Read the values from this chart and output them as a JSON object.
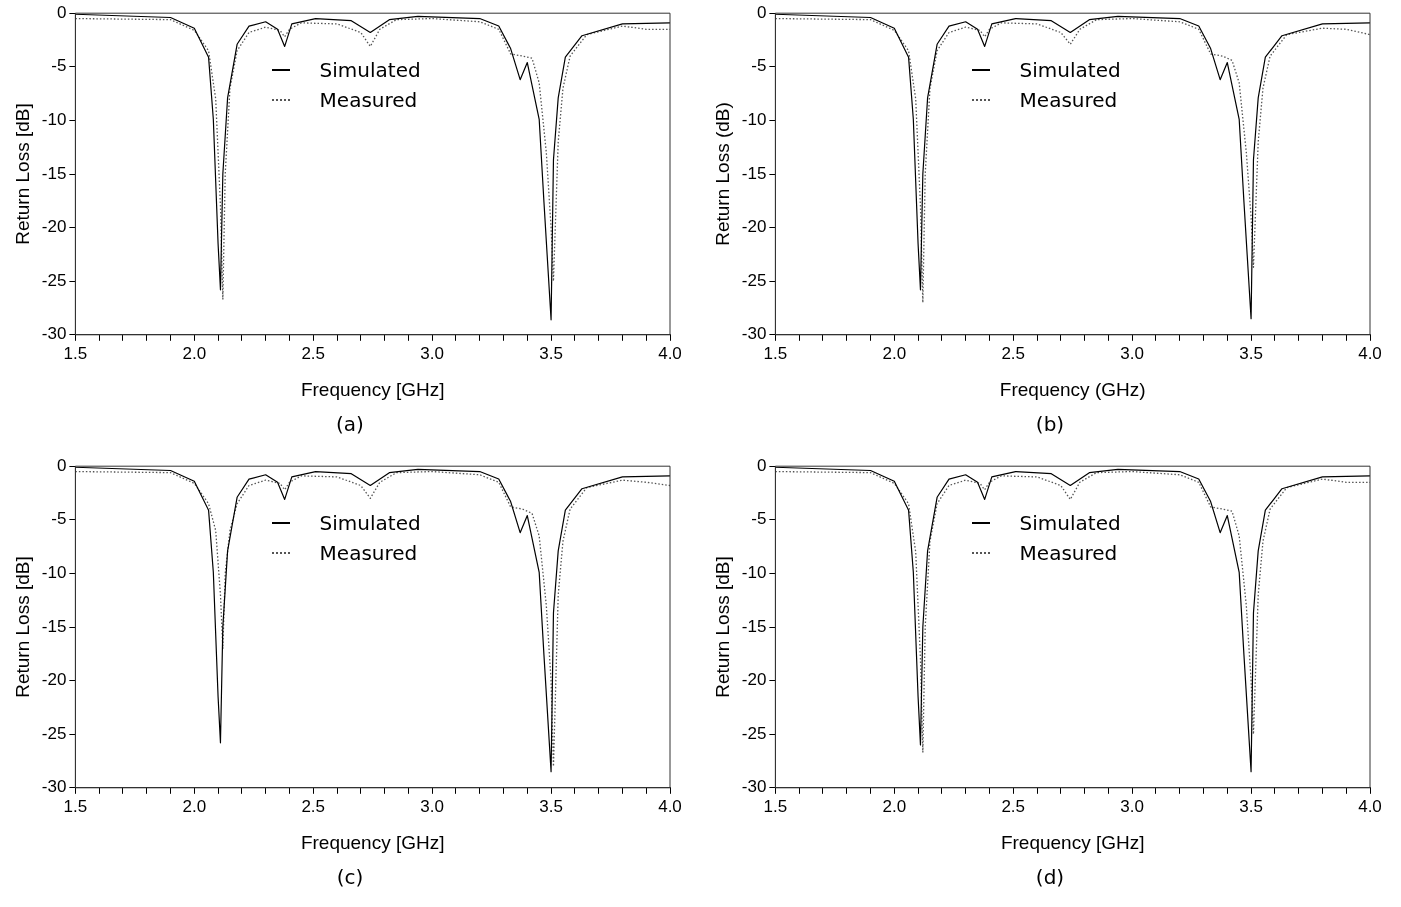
{
  "chart_data": [
    {
      "type": "line",
      "xlabel": "Frequency [GHz]",
      "ylabel": "Return Loss [dB]",
      "xlim": [
        1.5,
        4.0
      ],
      "ylim": [
        -30,
        0
      ],
      "yticks": [
        0,
        -5,
        -10,
        -15,
        -20,
        -25,
        -30
      ],
      "xticks": [
        1.5,
        {
          "value": 1.6,
          "label": null
        },
        {
          "value": 1.7,
          "label": null
        },
        {
          "value": 1.8,
          "label": null
        },
        {
          "value": 1.9,
          "label": null
        },
        {
          "value": 2.0,
          "label": "2.0"
        },
        {
          "value": 2.1,
          "label": null
        },
        {
          "value": 2.2,
          "label": null
        },
        {
          "value": 2.3,
          "label": null
        },
        {
          "value": 2.4,
          "label": null
        },
        2.5,
        {
          "value": 2.6,
          "label": null
        },
        {
          "value": 2.7,
          "label": null
        },
        {
          "value": 2.8,
          "label": null
        },
        {
          "value": 2.9,
          "label": null
        },
        {
          "value": 3.0,
          "label": "3.0"
        },
        {
          "value": 3.1,
          "label": null
        },
        {
          "value": 3.2,
          "label": null
        },
        {
          "value": 3.3,
          "label": null
        },
        {
          "value": 3.4,
          "label": null
        },
        3.5,
        {
          "value": 3.6,
          "label": null
        },
        {
          "value": 3.7,
          "label": null
        },
        {
          "value": 3.8,
          "label": null
        },
        {
          "value": 3.9,
          "label": null
        },
        {
          "value": 4.0,
          "label": "4.0"
        }
      ],
      "legend": "top",
      "marker": "none",
      "annotations": [
        "(a)"
      ],
      "series": [
        {
          "name": "Simulated",
          "color": "#000000",
          "line_style": "solid",
          "x": [
            1.5,
            1.9,
            2.0,
            2.06,
            2.08,
            2.1,
            2.11,
            2.12,
            2.14,
            2.18,
            2.23,
            2.3,
            2.35,
            2.38,
            2.41,
            2.51,
            2.66,
            2.74,
            2.82,
            2.94,
            3.2,
            3.28,
            3.33,
            3.37,
            3.4,
            3.45,
            3.47,
            3.5,
            3.51,
            3.53,
            3.56,
            3.63,
            3.8,
            4.0
          ],
          "values": [
            -0.1,
            -0.4,
            -1.4,
            -4.1,
            -9.9,
            -21.5,
            -25.8,
            -15,
            -7.9,
            -2.9,
            -1.2,
            -0.8,
            -1.5,
            -3.1,
            -1.0,
            -0.5,
            -0.7,
            -1.8,
            -0.6,
            -0.3,
            -0.5,
            -1.2,
            -3.3,
            -6.2,
            -4.6,
            -9.9,
            -17.6,
            -28.6,
            -13.7,
            -7.9,
            -4.1,
            -2.1,
            -1.0,
            -0.9
          ]
        },
        {
          "name": "Measured",
          "color": "#555555",
          "line_style": "dotted",
          "x": [
            1.5,
            1.9,
            2.0,
            2.06,
            2.09,
            2.11,
            2.12,
            2.13,
            2.15,
            2.18,
            2.23,
            2.3,
            2.36,
            2.38,
            2.4,
            2.45,
            2.6,
            2.7,
            2.74,
            2.78,
            2.85,
            3.0,
            3.2,
            3.28,
            3.33,
            3.38,
            3.42,
            3.45,
            3.48,
            3.5,
            3.51,
            3.53,
            3.55,
            3.58,
            3.65,
            3.8,
            3.9,
            4.0
          ],
          "values": [
            -0.5,
            -0.6,
            -1.6,
            -3.5,
            -8,
            -18,
            -26.7,
            -15,
            -7,
            -3.5,
            -1.8,
            -1.3,
            -1.6,
            -2.2,
            -1.5,
            -0.9,
            -1.0,
            -1.8,
            -3.1,
            -1.5,
            -0.6,
            -0.5,
            -0.8,
            -1.5,
            -3.8,
            -4.0,
            -4.2,
            -6.5,
            -13,
            -20,
            -25,
            -12,
            -7,
            -4,
            -2.0,
            -1.2,
            -1.5,
            -1.5
          ]
        }
      ]
    },
    {
      "type": "line",
      "xlabel": "Frequency (GHz)",
      "ylabel": "Return Loss (dB)",
      "xlim": [
        1.5,
        4.0
      ],
      "ylim": [
        -30,
        0
      ],
      "yticks": [
        0,
        -5,
        -10,
        -15,
        -20,
        -25,
        -30
      ],
      "xticks": [
        1.5,
        {
          "value": 1.6,
          "label": null
        },
        {
          "value": 1.7,
          "label": null
        },
        {
          "value": 1.8,
          "label": null
        },
        {
          "value": 1.9,
          "label": null
        },
        {
          "value": 2.0,
          "label": "2.0"
        },
        {
          "value": 2.1,
          "label": null
        },
        {
          "value": 2.2,
          "label": null
        },
        {
          "value": 2.3,
          "label": null
        },
        {
          "value": 2.4,
          "label": null
        },
        2.5,
        {
          "value": 2.6,
          "label": null
        },
        {
          "value": 2.7,
          "label": null
        },
        {
          "value": 2.8,
          "label": null
        },
        {
          "value": 2.9,
          "label": null
        },
        {
          "value": 3.0,
          "label": "3.0"
        },
        {
          "value": 3.1,
          "label": null
        },
        {
          "value": 3.2,
          "label": null
        },
        {
          "value": 3.3,
          "label": null
        },
        {
          "value": 3.4,
          "label": null
        },
        3.5,
        {
          "value": 3.6,
          "label": null
        },
        {
          "value": 3.7,
          "label": null
        },
        {
          "value": 3.8,
          "label": null
        },
        {
          "value": 3.9,
          "label": null
        },
        {
          "value": 4.0,
          "label": "4.0"
        }
      ],
      "legend": "top",
      "marker": "none",
      "annotations": [
        "(b)"
      ],
      "series": [
        {
          "name": "Simulated",
          "color": "#000000",
          "line_style": "solid",
          "x": [
            1.5,
            1.9,
            2.0,
            2.06,
            2.08,
            2.1,
            2.11,
            2.12,
            2.14,
            2.18,
            2.23,
            2.3,
            2.35,
            2.38,
            2.41,
            2.51,
            2.66,
            2.74,
            2.82,
            2.94,
            3.2,
            3.28,
            3.33,
            3.37,
            3.4,
            3.45,
            3.47,
            3.5,
            3.51,
            3.53,
            3.56,
            3.63,
            3.8,
            4.0
          ],
          "values": [
            -0.1,
            -0.4,
            -1.4,
            -4.1,
            -9.9,
            -21.5,
            -25.8,
            -15,
            -7.9,
            -2.9,
            -1.2,
            -0.8,
            -1.5,
            -3.1,
            -1.0,
            -0.5,
            -0.7,
            -1.8,
            -0.6,
            -0.3,
            -0.5,
            -1.2,
            -3.3,
            -6.2,
            -4.6,
            -9.9,
            -17.6,
            -28.5,
            -13.7,
            -7.9,
            -4.1,
            -2.1,
            -1.0,
            -0.9
          ]
        },
        {
          "name": "Measured",
          "color": "#555555",
          "line_style": "dotted",
          "x": [
            1.5,
            1.9,
            2.0,
            2.06,
            2.09,
            2.11,
            2.12,
            2.13,
            2.15,
            2.18,
            2.23,
            2.3,
            2.36,
            2.38,
            2.4,
            2.45,
            2.6,
            2.7,
            2.74,
            2.78,
            2.85,
            3.0,
            3.2,
            3.28,
            3.33,
            3.38,
            3.42,
            3.45,
            3.48,
            3.5,
            3.51,
            3.53,
            3.55,
            3.58,
            3.65,
            3.8,
            3.9,
            4.0
          ],
          "values": [
            -0.5,
            -0.6,
            -1.6,
            -3.5,
            -8,
            -18,
            -27,
            -15,
            -7,
            -3.5,
            -1.8,
            -1.3,
            -1.6,
            -2.2,
            -1.5,
            -0.9,
            -1.0,
            -1.8,
            -2.9,
            -1.5,
            -0.6,
            -0.5,
            -0.8,
            -1.5,
            -3.8,
            -4.0,
            -4.4,
            -6.5,
            -13,
            -19,
            -23.7,
            -12,
            -7,
            -4,
            -2.0,
            -1.4,
            -1.5,
            -2.0
          ]
        }
      ]
    },
    {
      "type": "line",
      "xlabel": "Frequency [GHz]",
      "ylabel": "Return Loss [dB]",
      "xlim": [
        1.5,
        4.0
      ],
      "ylim": [
        -30,
        0
      ],
      "yticks": [
        0,
        -5,
        -10,
        -15,
        -20,
        -25,
        -30
      ],
      "xticks": [
        1.5,
        {
          "value": 1.6,
          "label": null
        },
        {
          "value": 1.7,
          "label": null
        },
        {
          "value": 1.8,
          "label": null
        },
        {
          "value": 1.9,
          "label": null
        },
        {
          "value": 2.0,
          "label": "2.0"
        },
        {
          "value": 2.1,
          "label": null
        },
        {
          "value": 2.2,
          "label": null
        },
        {
          "value": 2.3,
          "label": null
        },
        {
          "value": 2.4,
          "label": null
        },
        2.5,
        {
          "value": 2.6,
          "label": null
        },
        {
          "value": 2.7,
          "label": null
        },
        {
          "value": 2.8,
          "label": null
        },
        {
          "value": 2.9,
          "label": null
        },
        {
          "value": 3.0,
          "label": "3.0"
        },
        {
          "value": 3.1,
          "label": null
        },
        {
          "value": 3.2,
          "label": null
        },
        {
          "value": 3.3,
          "label": null
        },
        {
          "value": 3.4,
          "label": null
        },
        3.5,
        {
          "value": 3.6,
          "label": null
        },
        {
          "value": 3.7,
          "label": null
        },
        {
          "value": 3.8,
          "label": null
        },
        {
          "value": 3.9,
          "label": null
        },
        {
          "value": 4.0,
          "label": "4.0"
        }
      ],
      "legend": "top",
      "marker": "none",
      "annotations": [
        "(c)"
      ],
      "series": [
        {
          "name": "Simulated",
          "color": "#000000",
          "line_style": "solid",
          "x": [
            1.5,
            1.9,
            2.0,
            2.06,
            2.08,
            2.1,
            2.11,
            2.12,
            2.14,
            2.18,
            2.23,
            2.3,
            2.35,
            2.38,
            2.41,
            2.51,
            2.66,
            2.74,
            2.82,
            2.94,
            3.2,
            3.28,
            3.33,
            3.37,
            3.4,
            3.45,
            3.47,
            3.5,
            3.51,
            3.53,
            3.56,
            3.63,
            3.8,
            4.0
          ],
          "values": [
            -0.1,
            -0.4,
            -1.4,
            -4.1,
            -9.9,
            -21.5,
            -25.8,
            -15,
            -7.9,
            -2.9,
            -1.2,
            -0.8,
            -1.5,
            -3.1,
            -1.0,
            -0.5,
            -0.7,
            -1.8,
            -0.6,
            -0.3,
            -0.5,
            -1.2,
            -3.3,
            -6.2,
            -4.6,
            -9.9,
            -17.6,
            -28.5,
            -13.7,
            -7.9,
            -4.1,
            -2.1,
            -1.0,
            -0.9
          ]
        },
        {
          "name": "Measured",
          "color": "#555555",
          "line_style": "dotted",
          "x": [
            1.5,
            1.9,
            2.0,
            2.06,
            2.09,
            2.11,
            2.12,
            2.13,
            2.15,
            2.18,
            2.23,
            2.3,
            2.36,
            2.38,
            2.4,
            2.45,
            2.6,
            2.7,
            2.74,
            2.78,
            2.85,
            3.0,
            3.2,
            3.28,
            3.33,
            3.38,
            3.42,
            3.45,
            3.48,
            3.5,
            3.51,
            3.53,
            3.55,
            3.58,
            3.65,
            3.8,
            3.9,
            4.0
          ],
          "values": [
            -0.5,
            -0.6,
            -1.6,
            -3.5,
            -6,
            -12,
            -17,
            -10,
            -6,
            -3.5,
            -1.8,
            -1.3,
            -1.6,
            -2.2,
            -1.5,
            -0.9,
            -1.0,
            -1.8,
            -3.0,
            -1.5,
            -0.6,
            -0.5,
            -0.8,
            -1.5,
            -3.8,
            -4.0,
            -4.4,
            -6.5,
            -13,
            -20,
            -28,
            -12,
            -7,
            -4,
            -2.0,
            -1.3,
            -1.5,
            -1.8
          ]
        }
      ]
    },
    {
      "type": "line",
      "xlabel": "Frequency [GHz]",
      "ylabel": "Return Loss [dB]",
      "xlim": [
        1.5,
        4.0
      ],
      "ylim": [
        -30,
        0
      ],
      "yticks": [
        0,
        -5,
        -10,
        -15,
        -20,
        -25,
        -30
      ],
      "xticks": [
        1.5,
        {
          "value": 1.6,
          "label": null
        },
        {
          "value": 1.7,
          "label": null
        },
        {
          "value": 1.8,
          "label": null
        },
        {
          "value": 1.9,
          "label": null
        },
        {
          "value": 2.0,
          "label": "2.0"
        },
        {
          "value": 2.1,
          "label": null
        },
        {
          "value": 2.2,
          "label": null
        },
        {
          "value": 2.3,
          "label": null
        },
        {
          "value": 2.4,
          "label": null
        },
        2.5,
        {
          "value": 2.6,
          "label": null
        },
        {
          "value": 2.7,
          "label": null
        },
        {
          "value": 2.8,
          "label": null
        },
        {
          "value": 2.9,
          "label": null
        },
        {
          "value": 3.0,
          "label": "3.0"
        },
        {
          "value": 3.1,
          "label": null
        },
        {
          "value": 3.2,
          "label": null
        },
        {
          "value": 3.3,
          "label": null
        },
        {
          "value": 3.4,
          "label": null
        },
        3.5,
        {
          "value": 3.6,
          "label": null
        },
        {
          "value": 3.7,
          "label": null
        },
        {
          "value": 3.8,
          "label": null
        },
        {
          "value": 3.9,
          "label": null
        },
        {
          "value": 4.0,
          "label": "4.0"
        }
      ],
      "legend": "top",
      "marker": "none",
      "annotations": [
        "(d)"
      ],
      "series": [
        {
          "name": "Simulated",
          "color": "#000000",
          "line_style": "solid",
          "x": [
            1.5,
            1.9,
            2.0,
            2.06,
            2.08,
            2.1,
            2.11,
            2.12,
            2.14,
            2.18,
            2.23,
            2.3,
            2.35,
            2.38,
            2.41,
            2.51,
            2.66,
            2.74,
            2.82,
            2.94,
            3.2,
            3.28,
            3.33,
            3.37,
            3.4,
            3.45,
            3.47,
            3.5,
            3.51,
            3.53,
            3.56,
            3.63,
            3.8,
            4.0
          ],
          "values": [
            -0.1,
            -0.4,
            -1.4,
            -4.1,
            -9.9,
            -21.5,
            -26,
            -15,
            -7.9,
            -2.9,
            -1.2,
            -0.8,
            -1.5,
            -3.1,
            -1.0,
            -0.5,
            -0.7,
            -1.8,
            -0.6,
            -0.3,
            -0.5,
            -1.2,
            -3.3,
            -6.2,
            -4.6,
            -9.9,
            -17.6,
            -28.5,
            -13.7,
            -7.9,
            -4.1,
            -2.1,
            -1.0,
            -0.9
          ]
        },
        {
          "name": "Measured",
          "color": "#555555",
          "line_style": "dotted",
          "x": [
            1.5,
            1.9,
            2.0,
            2.06,
            2.09,
            2.11,
            2.12,
            2.13,
            2.15,
            2.18,
            2.23,
            2.3,
            2.36,
            2.38,
            2.4,
            2.45,
            2.6,
            2.7,
            2.74,
            2.78,
            2.85,
            3.0,
            3.2,
            3.28,
            3.33,
            3.38,
            3.42,
            3.45,
            3.48,
            3.5,
            3.51,
            3.53,
            3.55,
            3.58,
            3.65,
            3.8,
            3.9,
            4.0
          ],
          "values": [
            -0.5,
            -0.6,
            -1.6,
            -3.5,
            -8,
            -18,
            -26.7,
            -15,
            -7,
            -3.5,
            -1.8,
            -1.3,
            -1.6,
            -2.2,
            -1.5,
            -0.9,
            -1.0,
            -1.8,
            -3.1,
            -1.5,
            -0.6,
            -0.5,
            -0.8,
            -1.5,
            -3.8,
            -4.0,
            -4.2,
            -6.5,
            -13,
            -20,
            -25,
            -12,
            -7,
            -4,
            -2.0,
            -1.2,
            -1.5,
            -1.5
          ]
        }
      ]
    }
  ]
}
